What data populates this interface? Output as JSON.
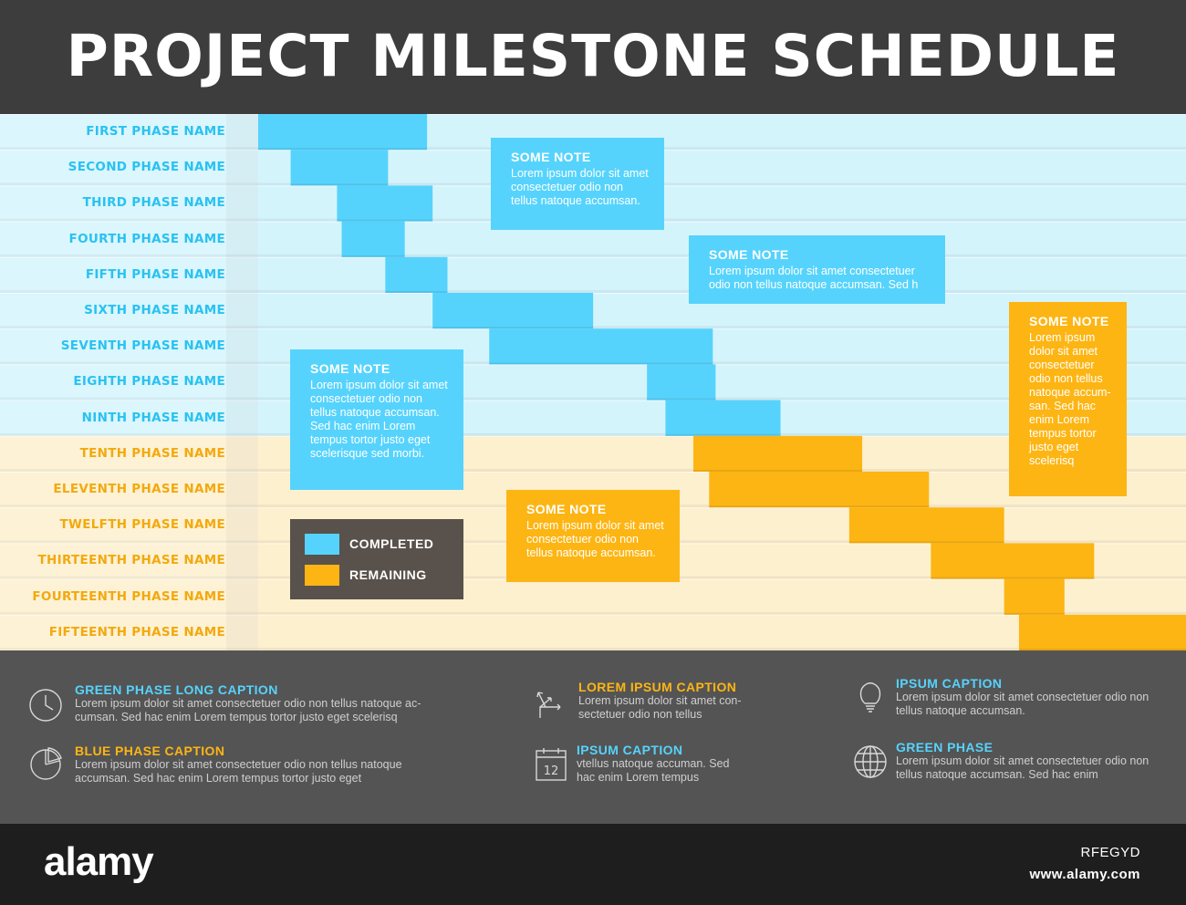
{
  "header": {
    "title": "PROJECT MILESTONE SCHEDULE"
  },
  "colors": {
    "completed": "#56d3fc",
    "remaining": "#fdb514",
    "completed_bg": "#d4f4fc",
    "remaining_bg": "#fdf0ce",
    "completed_label": "#29c2f2",
    "remaining_label": "#f3a90d",
    "legend_bg": "#59514b",
    "header_bg": "#3d3d3d",
    "footer_bg": "#545454"
  },
  "chart_data": {
    "type": "gantt",
    "title": "PROJECT MILESTONE SCHEDULE",
    "categories": [
      "FIRST PHASE NAME",
      "SECOND PHASE NAME",
      "THIRD PHASE NAME",
      "FOURTH PHASE NAME",
      "FIFTH PHASE NAME",
      "SIXTH PHASE NAME",
      "SEVENTH PHASE NAME",
      "EIGHTH PHASE NAME",
      "NINTH PHASE NAME",
      "TENTH PHASE NAME",
      "ELEVENTH PHASE NAME",
      "TWELFTH PHASE NAME",
      "THIRTEENTH PHASE NAME",
      "FOURTEENTH PHASE NAME",
      "FIFTEENTH PHASE NAME"
    ],
    "x_range": [
      0,
      100
    ],
    "tasks": [
      {
        "start": 0.0,
        "end": 18.2,
        "status": "completed"
      },
      {
        "start": 3.5,
        "end": 14.0,
        "status": "completed"
      },
      {
        "start": 8.5,
        "end": 18.8,
        "status": "completed"
      },
      {
        "start": 9.0,
        "end": 15.8,
        "status": "completed"
      },
      {
        "start": 13.7,
        "end": 20.4,
        "status": "completed"
      },
      {
        "start": 18.8,
        "end": 36.1,
        "status": "completed"
      },
      {
        "start": 24.9,
        "end": 49.0,
        "status": "completed"
      },
      {
        "start": 41.9,
        "end": 49.3,
        "status": "completed"
      },
      {
        "start": 43.9,
        "end": 56.3,
        "status": "completed"
      },
      {
        "start": 46.9,
        "end": 65.1,
        "status": "remaining"
      },
      {
        "start": 48.6,
        "end": 72.3,
        "status": "remaining"
      },
      {
        "start": 63.7,
        "end": 80.4,
        "status": "remaining"
      },
      {
        "start": 72.5,
        "end": 90.1,
        "status": "remaining"
      },
      {
        "start": 80.4,
        "end": 86.9,
        "status": "remaining"
      },
      {
        "start": 82.0,
        "end": 100.0,
        "status": "remaining"
      }
    ],
    "legend": [
      {
        "label": "COMPLETED",
        "status": "completed"
      },
      {
        "label": "REMAINING",
        "status": "remaining"
      }
    ]
  },
  "notes": [
    {
      "title": "SOME NOTE",
      "text": "Lorem ipsum dolor sit amet consectetuer odio non tellus natoque accumsan.",
      "status": "completed"
    },
    {
      "title": "SOME NOTE",
      "text": "Lorem ipsum dolor sit amet consectetuer odio non tellus natoque accumsan. Sed h",
      "status": "completed"
    },
    {
      "title": "SOME NOTE",
      "text": "Lorem ipsum dolor sit amet consectetuer odio non tellus natoque accumsan. Sed hac enim Lorem tempus tortor justo eget scelerisque sed morbi.",
      "status": "completed"
    },
    {
      "title": "SOME NOTE",
      "text": "Lorem ipsum dolor sit amet consectetuer odio non tellus natoque accumsan.",
      "status": "remaining"
    },
    {
      "title": "SOME NOTE",
      "text": "Lorem ipsum dolor sit amet consectetuer odio non tellus natoque accum-san. Sed hac enim Lorem tempus tortor justo eget scelerisq",
      "status": "remaining"
    }
  ],
  "captions": [
    {
      "icon": "clock-icon",
      "title": "GREEN PHASE LONG CAPTION",
      "text": "Lorem ipsum dolor sit amet consectetuer odio non tellus natoque ac-cumsan. Sed hac enim Lorem tempus tortor justo eget scelerisq",
      "status": "completed"
    },
    {
      "icon": "pie-chart-icon",
      "title": "BLUE PHASE CAPTION",
      "text": "Lorem ipsum dolor sit amet consectetuer odio non tellus natoque accumsan. Sed hac enim Lorem tempus tortor justo eget",
      "status": "remaining"
    },
    {
      "icon": "arrows-icon",
      "title": "LOREM IPSUM CAPTION",
      "text": "Lorem ipsum dolor sit amet con-sectetuer odio non tellus",
      "status": "remaining"
    },
    {
      "icon": "calendar-icon",
      "title": "IPSUM CAPTION",
      "text": "vtellus natoque accuman. Sed hac enim Lorem tempus",
      "status": "completed"
    },
    {
      "icon": "lightbulb-icon",
      "title": "IPSUM CAPTION",
      "text": "Lorem ipsum dolor sit amet consectetuer odio non tellus natoque accumsan.",
      "status": "completed"
    },
    {
      "icon": "globe-icon",
      "title": "GREEN PHASE",
      "text": "Lorem ipsum dolor sit amet consectetuer odio non tellus natoque accumsan. Sed hac enim",
      "status": "completed"
    }
  ],
  "calendar_day": "12",
  "branding": {
    "logo": "alamy",
    "image_id": "RFEGYD",
    "site": "www.alamy.com"
  }
}
